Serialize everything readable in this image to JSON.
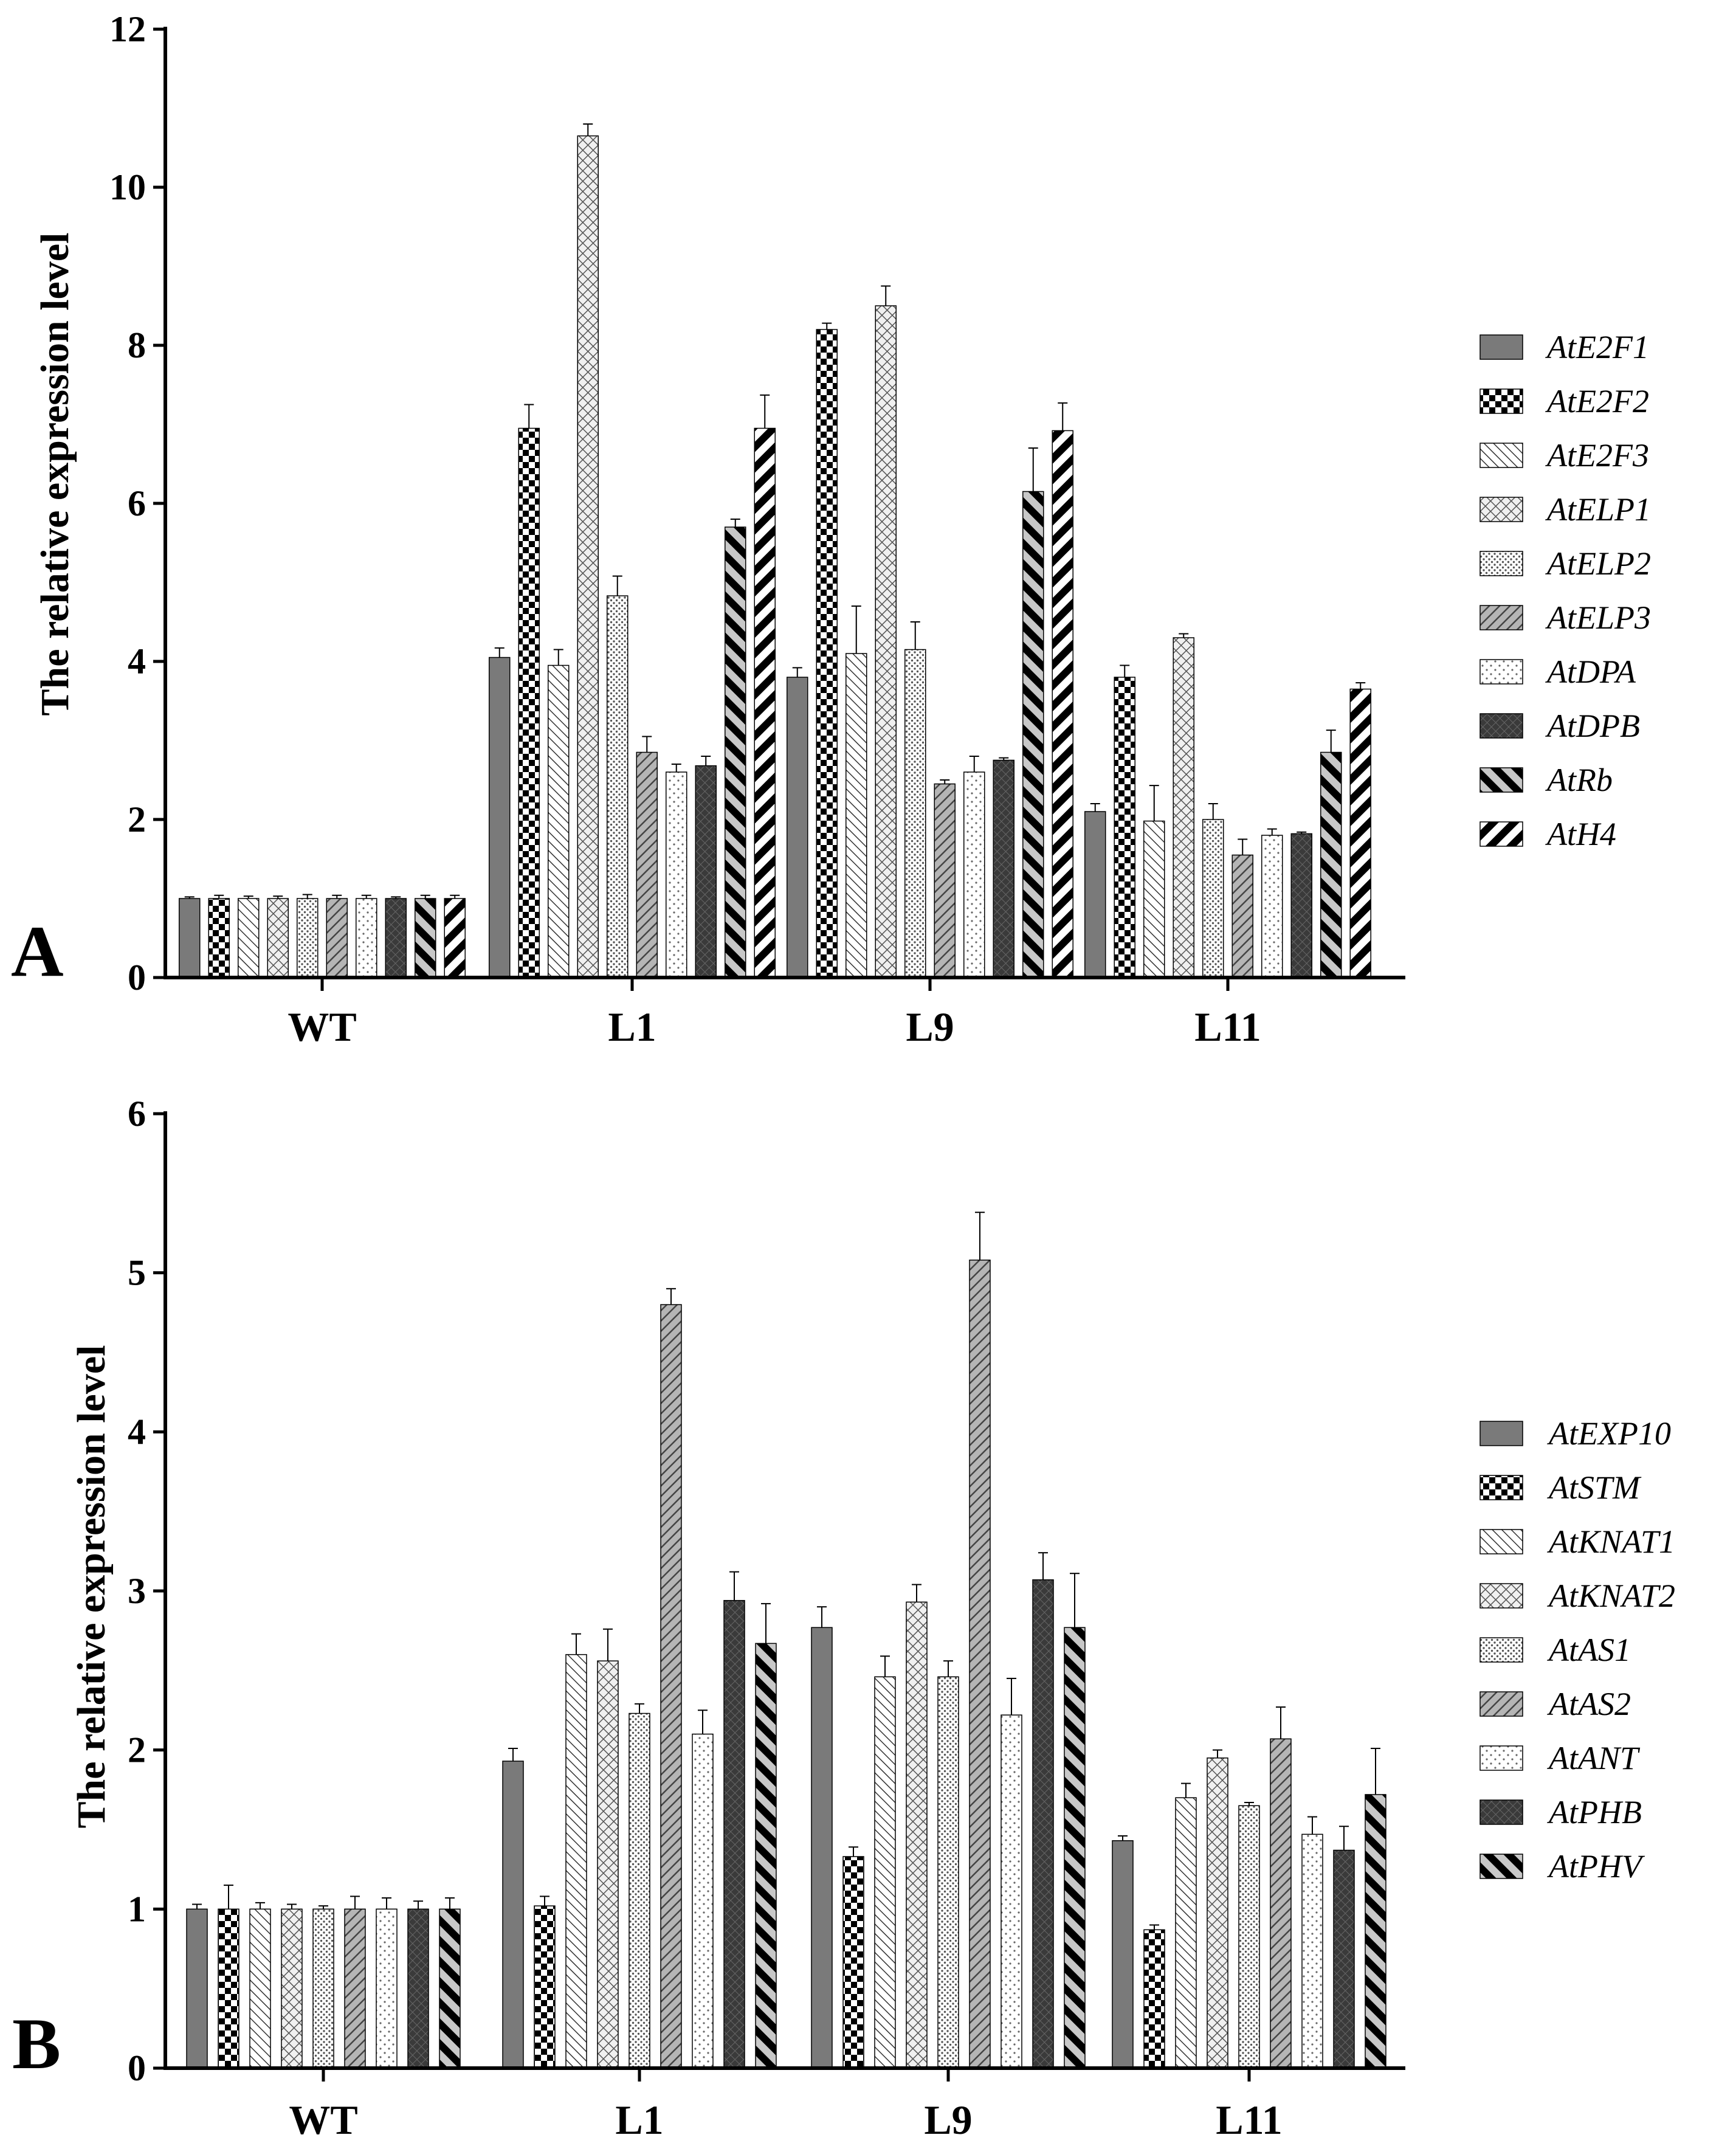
{
  "chart_data": [
    {
      "panel_label": "A",
      "type": "bar",
      "ylabel": "The relative expression level",
      "xlabel": "",
      "ylim": [
        0,
        12
      ],
      "yticks": [
        0,
        2,
        4,
        6,
        8,
        10,
        12
      ],
      "categories": [
        "WT",
        "L1",
        "L9",
        "L11"
      ],
      "legend_position": "right",
      "series": [
        {
          "name": "AtE2F1",
          "pattern": "solid",
          "values": [
            1.0,
            4.05,
            3.8,
            2.1
          ],
          "errors": [
            0.02,
            0.12,
            0.12,
            0.1
          ]
        },
        {
          "name": "AtE2F2",
          "pattern": "checker",
          "values": [
            1.0,
            6.95,
            8.2,
            3.8
          ],
          "errors": [
            0.04,
            0.3,
            0.08,
            0.15
          ]
        },
        {
          "name": "AtE2F3",
          "pattern": "diag-thin-back",
          "values": [
            1.0,
            3.95,
            4.1,
            1.98
          ],
          "errors": [
            0.03,
            0.2,
            0.6,
            0.45
          ]
        },
        {
          "name": "AtELP1",
          "pattern": "crosshatch",
          "values": [
            1.0,
            10.65,
            8.5,
            4.3
          ],
          "errors": [
            0.03,
            0.15,
            0.25,
            0.05
          ]
        },
        {
          "name": "AtELP2",
          "pattern": "dots-dense",
          "values": [
            1.0,
            4.83,
            4.15,
            2.0
          ],
          "errors": [
            0.05,
            0.25,
            0.35,
            0.2
          ]
        },
        {
          "name": "AtELP3",
          "pattern": "diag-medium",
          "values": [
            1.0,
            2.85,
            2.45,
            1.55
          ],
          "errors": [
            0.04,
            0.2,
            0.05,
            0.2
          ]
        },
        {
          "name": "AtDPA",
          "pattern": "dots-sparse",
          "values": [
            1.0,
            2.6,
            2.6,
            1.8
          ],
          "errors": [
            0.04,
            0.1,
            0.2,
            0.08
          ]
        },
        {
          "name": "AtDPB",
          "pattern": "dark-grid",
          "values": [
            1.0,
            2.68,
            2.75,
            1.82
          ],
          "errors": [
            0.02,
            0.12,
            0.03,
            0.02
          ]
        },
        {
          "name": "AtRb",
          "pattern": "thick-back",
          "values": [
            1.0,
            5.7,
            6.15,
            2.85
          ],
          "errors": [
            0.04,
            0.1,
            0.55,
            0.28
          ]
        },
        {
          "name": "AtH4",
          "pattern": "thick-fwd",
          "values": [
            1.0,
            6.95,
            6.92,
            3.65
          ],
          "errors": [
            0.04,
            0.42,
            0.35,
            0.08
          ]
        }
      ]
    },
    {
      "panel_label": "B",
      "type": "bar",
      "ylabel": "The relative expression level",
      "xlabel": "",
      "ylim": [
        0,
        6
      ],
      "yticks": [
        0,
        1,
        2,
        3,
        4,
        5,
        6
      ],
      "categories": [
        "WT",
        "L1",
        "L9",
        "L11"
      ],
      "legend_position": "right",
      "series": [
        {
          "name": "AtEXP10",
          "pattern": "solid",
          "values": [
            1.0,
            1.93,
            2.77,
            1.43
          ],
          "errors": [
            0.03,
            0.08,
            0.13,
            0.03
          ]
        },
        {
          "name": "AtSTM",
          "pattern": "checker",
          "values": [
            1.0,
            1.02,
            1.33,
            0.87
          ],
          "errors": [
            0.15,
            0.06,
            0.06,
            0.03
          ]
        },
        {
          "name": "AtKNAT1",
          "pattern": "diag-thin-back",
          "values": [
            1.0,
            2.6,
            2.46,
            1.7
          ],
          "errors": [
            0.04,
            0.13,
            0.13,
            0.09
          ]
        },
        {
          "name": "AtKNAT2",
          "pattern": "crosshatch",
          "values": [
            1.0,
            2.56,
            2.93,
            1.95
          ],
          "errors": [
            0.03,
            0.2,
            0.11,
            0.05
          ]
        },
        {
          "name": "AtAS1",
          "pattern": "dots-dense",
          "values": [
            1.0,
            2.23,
            2.46,
            1.65
          ],
          "errors": [
            0.02,
            0.06,
            0.1,
            0.02
          ]
        },
        {
          "name": "AtAS2",
          "pattern": "diag-medium",
          "values": [
            1.0,
            4.8,
            5.08,
            2.07
          ],
          "errors": [
            0.08,
            0.1,
            0.3,
            0.2
          ]
        },
        {
          "name": "AtANT",
          "pattern": "dots-sparse",
          "values": [
            1.0,
            2.1,
            2.22,
            1.47
          ],
          "errors": [
            0.07,
            0.15,
            0.23,
            0.11
          ]
        },
        {
          "name": "AtPHB",
          "pattern": "dark-grid",
          "values": [
            1.0,
            2.94,
            3.07,
            1.37
          ],
          "errors": [
            0.05,
            0.18,
            0.17,
            0.15
          ]
        },
        {
          "name": "AtPHV",
          "pattern": "thick-back",
          "values": [
            1.0,
            2.67,
            2.77,
            1.72
          ],
          "errors": [
            0.07,
            0.25,
            0.34,
            0.29
          ]
        }
      ]
    }
  ]
}
